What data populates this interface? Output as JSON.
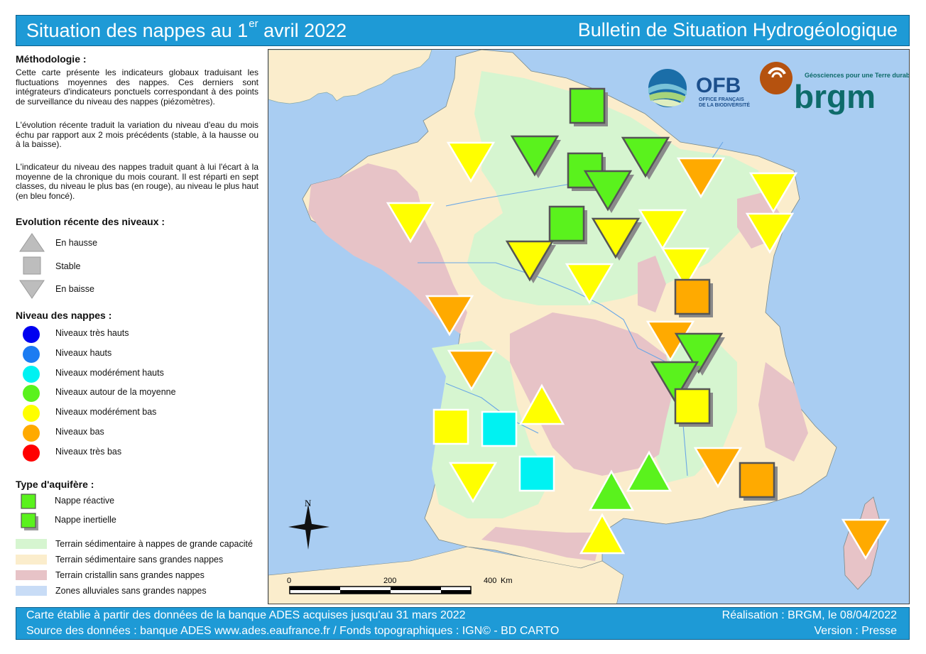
{
  "header": {
    "title_main": "Situation des nappes au 1",
    "title_sup": "er",
    "title_end": " avril 2022",
    "subtitle": "Bulletin de Situation Hydrogéologique"
  },
  "legend": {
    "methodology_title": "Méthodologie :",
    "methodology_p1": "Cette carte présente les indicateurs globaux traduisant les fluctuations moyennes des nappes. Ces derniers sont intégrateurs d'indicateurs ponctuels correspondant à des points de surveillance du niveau des nappes (piézomètres).",
    "methodology_p2": "L'évolution récente traduit la variation du niveau d'eau du mois échu par rapport aux 2 mois précédents (stable, à la hausse ou à la baisse).",
    "methodology_p3": "L'indicateur du niveau des nappes traduit quant à lui l'écart à la moyenne de la chronique du mois courant. Il est réparti en sept classes, du niveau le plus bas (en rouge), au niveau le plus haut (en bleu foncé).",
    "evolution_title": "Evolution récente des niveaux :",
    "evolution_items": [
      "En hausse",
      "Stable",
      "En baisse"
    ],
    "level_title": "Niveau des nappes :",
    "level_items": [
      {
        "label": "Niveaux très hauts",
        "color": "#0000f0"
      },
      {
        "label": "Niveaux hauts",
        "color": "#1c7cf2"
      },
      {
        "label": "Niveaux modérément hauts",
        "color": "#00f2f2"
      },
      {
        "label": "Niveaux autour de la moyenne",
        "color": "#5af21d"
      },
      {
        "label": "Niveaux modérément bas",
        "color": "#ffff00"
      },
      {
        "label": "Niveaux bas",
        "color": "#ffaa00"
      },
      {
        "label": "Niveaux très bas",
        "color": "#ff0000"
      }
    ],
    "aquifer_title": "Type d'aquifère :",
    "aquifer_items": [
      "Nappe réactive",
      "Nappe inertielle"
    ],
    "terrain_items": [
      {
        "label": "Terrain sédimentaire à nappes de grande capacité",
        "color": "#d6f5d0"
      },
      {
        "label": "Terrain sédimentaire sans grandes nappes",
        "color": "#fbedcc"
      },
      {
        "label": "Terrain cristallin sans grandes nappes",
        "color": "#e7c3c7"
      },
      {
        "label": "Zones alluviales sans grandes nappes",
        "color": "#c8dcf6"
      }
    ]
  },
  "map": {
    "north_label": "N",
    "scale_labels": [
      "0",
      "200",
      "400",
      "Km"
    ],
    "logos": {
      "ofb_big": "OFB",
      "ofb_line1": "OFFICE FRANÇAIS",
      "ofb_line2": "DE LA BIODIVERSITÉ",
      "brgm_tagline": "Géosciences pour une Terre durable",
      "brgm_name": "brgm"
    }
  },
  "footer": {
    "line1": "Carte établie à partir des données de la banque ADES acquises jusqu'au 31 mars 2022",
    "line2": "Source des données : banque ADES www.ades.eaufrance.fr / Fonds topographiques : IGN© - BD CARTO",
    "right1": "Réalisation : BRGM, le 08/04/2022",
    "right2": "Version : Presse"
  }
}
